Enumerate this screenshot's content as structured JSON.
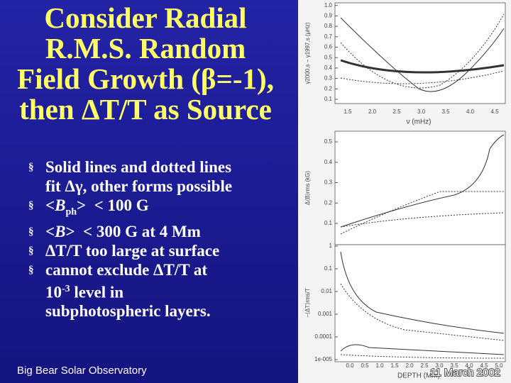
{
  "title": [
    "Consider Radial",
    "R.M.S. Random",
    "Field Growth (β=-1),",
    "then ΔT/T as Source"
  ],
  "bullets": [
    {
      "lines": [
        "Solid lines and dotted lines",
        "fit Δγ, other forms possible"
      ]
    },
    {
      "parts": [
        "<",
        "B",
        "ph",
        ">  < 100 G"
      ]
    },
    {
      "parts": [
        "<",
        "B",
        ">  < 300 G at 4 Mm"
      ]
    },
    {
      "lines": [
        "ΔT/T too large at surface"
      ]
    },
    {
      "lines": [
        "cannot exclude ΔT/T at"
      ],
      "parts": [
        "10",
        "-3",
        " level in"
      ],
      "tail": [
        "subphotospheric layers."
      ]
    }
  ],
  "footer": {
    "left": "Big Bear Solar Observatory",
    "right": "11 March  2002"
  },
  "plots": [
    {
      "ylabel": "γ2000,s − γ1997,s (μHz)",
      "xlabel": "ν (mHz)",
      "yticks": [
        "0.1",
        "0.2",
        "0.3",
        "0.4",
        "0.5",
        "0.6",
        "0.7",
        "0.8",
        "0.9",
        "1.0"
      ],
      "xticks": [
        "1.5",
        "2.0",
        "2.5",
        "3.0",
        "3.5",
        "4.0",
        "4.5"
      ]
    },
    {
      "ylabel": "Δ⟨B⟩rms (kG)",
      "yticks": [
        "0.1",
        "0.2",
        "0.3",
        "0.4",
        "0.5"
      ]
    },
    {
      "ylabel": "−⟨ΔT⟩rms/T",
      "xlabel": "DEPTH (Mm)",
      "yticks": [
        "1e-005",
        "0.0001",
        "0.001",
        "0.01",
        "0.1",
        "1"
      ],
      "xticks": [
        "0.0",
        "0.5",
        "1.0",
        "1.5",
        "2.0",
        "2.5",
        "3.0",
        "3.5",
        "4.0",
        "4.5",
        "5.0"
      ]
    }
  ]
}
